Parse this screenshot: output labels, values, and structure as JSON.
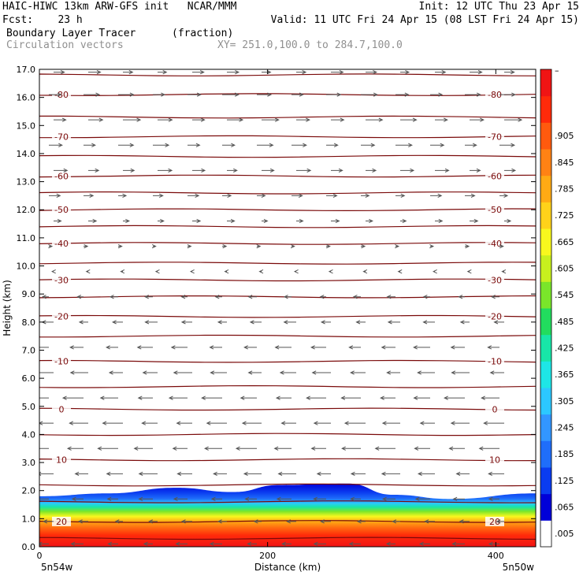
{
  "header": {
    "line1_left": "HAIC-HIWC 13km ARW-GFS init   NCAR/MMM",
    "line1_right": "Init: 12 UTC Thu 23 Apr 15",
    "line2_left": "Fcst:    23 h",
    "line2_right": "Valid: 11 UTC Fri 24 Apr 15 (08 LST Fri 24 Apr 15)",
    "field_name": "Boundary Layer Tracer",
    "field_units": "(fraction)",
    "vector_name": "Circulation vectors",
    "xsection": "XY= 251.0,100.0 to 284.7,100.0"
  },
  "chart_data": {
    "type": "heatmap",
    "xlabel": "Distance (km)",
    "ylabel": "Height (km)",
    "xlim": [
      0,
      435
    ],
    "ylim": [
      0,
      17
    ],
    "x_ticks": [
      "0",
      "200",
      "400"
    ],
    "x_tick_values": [
      0,
      200,
      400
    ],
    "y_ticks": [
      "0.0",
      "1.0",
      "2.0",
      "3.0",
      "4.0",
      "5.0",
      "6.0",
      "7.0",
      "8.0",
      "9.0",
      "10.0",
      "11.0",
      "12.0",
      "13.0",
      "14.0",
      "15.0",
      "16.0",
      "17.0"
    ],
    "endpoint_left": "5n54w",
    "endpoint_right": "5n50w",
    "colorbar": {
      "labels": [
        ".005",
        ".065",
        ".125",
        ".185",
        ".245",
        ".305",
        ".365",
        ".425",
        ".485",
        ".545",
        ".605",
        ".665",
        ".725",
        ".785",
        ".845",
        ".905"
      ],
      "top_label": "–",
      "colors": [
        "#ffffff",
        "#0000d8",
        "#0a3cf0",
        "#1f6efa",
        "#3296ff",
        "#2cc8ff",
        "#1ee6e6",
        "#18e6a8",
        "#22dc5e",
        "#7ae62a",
        "#c8f01e",
        "#f8f81e",
        "#ffd21a",
        "#ffaa14",
        "#ff8214",
        "#ff5a0e",
        "#ff2a0a",
        "#f01414"
      ]
    },
    "temperature_contours": [
      {
        "label": "-80",
        "z": 16.1
      },
      {
        "label": "-70",
        "z": 14.6
      },
      {
        "label": "-60",
        "z": 13.2
      },
      {
        "label": "-50",
        "z": 12.0
      },
      {
        "label": "-40",
        "z": 10.8
      },
      {
        "label": "-30",
        "z": 9.5
      },
      {
        "label": "-20",
        "z": 8.2
      },
      {
        "label": "-10",
        "z": 6.6
      },
      {
        "label": "0",
        "z": 4.9
      },
      {
        "label": "10",
        "z": 3.1
      },
      {
        "label": "20",
        "z": 0.9
      }
    ],
    "extra_contours_z": [
      0.3,
      1.6,
      2.2,
      4.0,
      5.7,
      7.5,
      8.9,
      10.1,
      11.4,
      12.6,
      13.9,
      15.3,
      16.8
    ],
    "bl_top_km": [
      [
        0,
        1.8
      ],
      [
        60,
        1.9
      ],
      [
        120,
        2.1
      ],
      [
        170,
        1.95
      ],
      [
        210,
        2.2
      ],
      [
        270,
        2.25
      ],
      [
        310,
        1.85
      ],
      [
        360,
        1.7
      ],
      [
        435,
        1.9
      ]
    ],
    "winds": {
      "direction_by_height": "westerly above ~10.5 km (strongest 13-17 km), weak near 10 km, easterly below ~10 km",
      "levels_km": [
        0.1,
        0.9,
        1.7,
        2.6,
        3.5,
        4.4,
        5.3,
        6.2,
        7.1,
        8.0,
        8.9,
        9.8,
        10.7,
        11.6,
        12.5,
        13.4,
        14.3,
        15.2,
        16.1,
        16.9
      ],
      "u_relative": [
        -0.6,
        -0.5,
        -0.7,
        -0.9,
        -1.0,
        -1.0,
        -1.0,
        -0.9,
        -0.8,
        -0.6,
        -0.4,
        -0.1,
        0.2,
        0.4,
        0.55,
        0.7,
        0.8,
        0.85,
        0.8,
        0.6
      ]
    }
  }
}
